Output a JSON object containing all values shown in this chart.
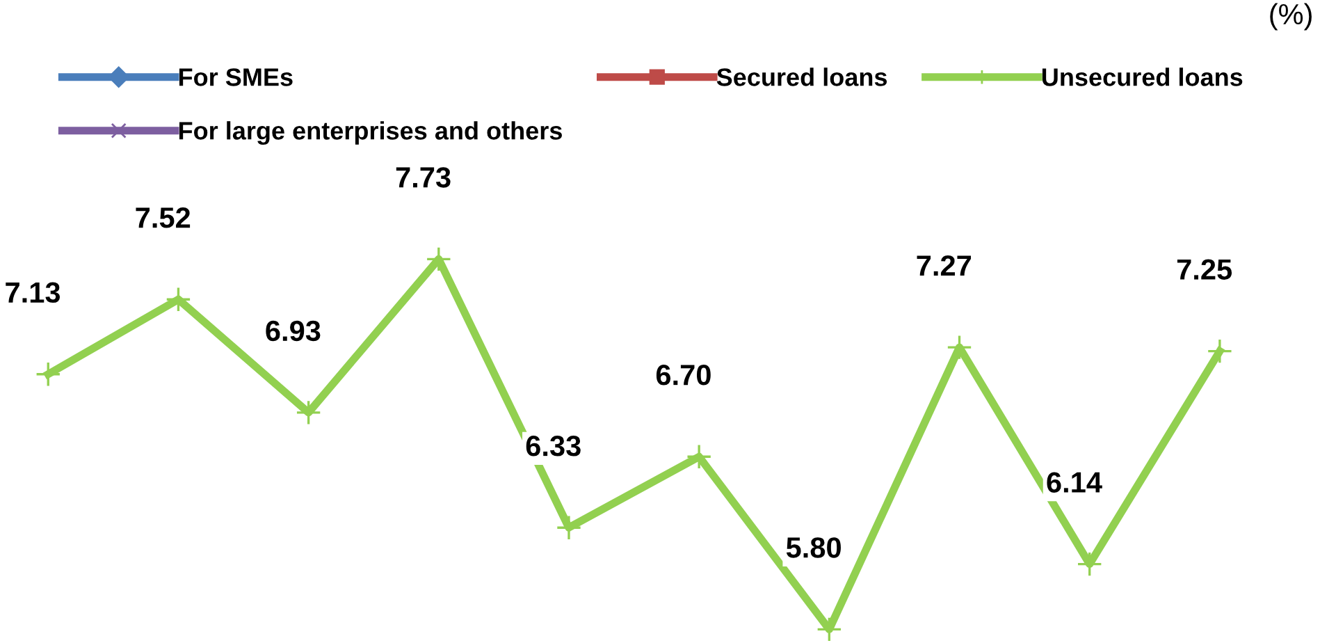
{
  "chart_data": {
    "type": "line",
    "categories": [
      null,
      null,
      null,
      null,
      null,
      null,
      null,
      null,
      null,
      null
    ],
    "series": [
      {
        "name": "For SMEs",
        "color": "#4a7ebb",
        "marker": "diamond",
        "values": [
          null,
          null,
          null,
          null,
          null,
          null,
          null,
          null,
          null,
          null
        ]
      },
      {
        "name": "Secured loans",
        "color": "#be4b48",
        "marker": "square",
        "values": [
          null,
          null,
          null,
          null,
          null,
          null,
          null,
          null,
          null,
          null
        ]
      },
      {
        "name": "Unsecured loans",
        "color": "#92d050",
        "marker": "cross",
        "values": [
          7.13,
          7.52,
          6.93,
          7.73,
          6.33,
          6.7,
          5.8,
          7.27,
          6.14,
          7.25
        ],
        "value_labels": [
          "7.13",
          "7.52",
          "6.93",
          "7.73",
          "6.33",
          "6.70",
          "5.80",
          "7.27",
          "6.14",
          "7.25"
        ]
      },
      {
        "name": "For large enterprises and others",
        "color": "#7d5fa0",
        "marker": "x",
        "values": [
          null,
          null,
          null,
          null,
          null,
          null,
          null,
          null,
          null,
          null
        ]
      }
    ],
    "legend": "top left",
    "line_style": "solid",
    "annotations": [
      "(%)"
    ]
  }
}
